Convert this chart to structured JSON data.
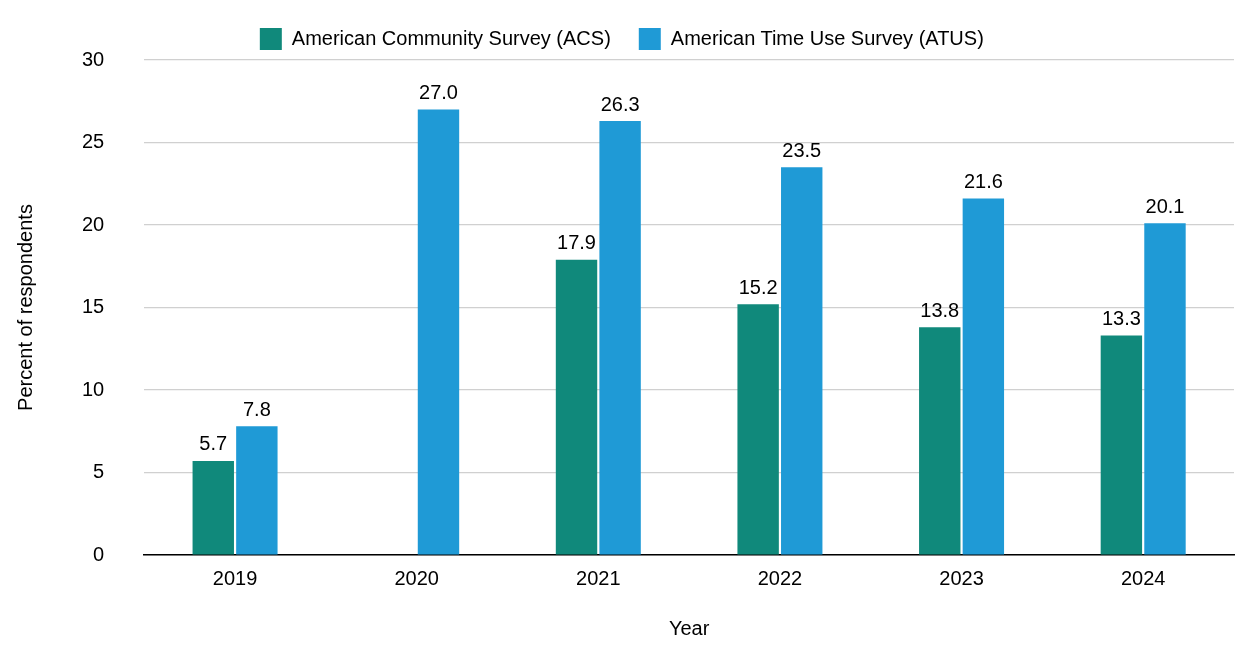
{
  "chart_data": {
    "type": "bar",
    "xlabel": "Year",
    "ylabel": "Percent of respondents",
    "categories": [
      "2019",
      "2020",
      "2021",
      "2022",
      "2023",
      "2024"
    ],
    "series": [
      {
        "name": "American Community Survey (ACS)",
        "color": "#10897b",
        "values": [
          5.7,
          null,
          17.9,
          15.2,
          13.8,
          13.3
        ],
        "value_labels": [
          "5.7",
          null,
          "17.9",
          "15.2",
          "13.8",
          "13.3"
        ]
      },
      {
        "name": "American Time Use Survey (ATUS)",
        "color": "#1f9ad6",
        "values": [
          7.8,
          27.0,
          26.3,
          23.5,
          21.6,
          20.1
        ],
        "value_labels": [
          "7.8",
          "27.0",
          "26.3",
          "23.5",
          "21.6",
          "20.1"
        ]
      }
    ],
    "ylim": [
      0,
      30
    ],
    "yticks": [
      0,
      5,
      10,
      15,
      20,
      25,
      30
    ],
    "grid": "y",
    "legend": "top"
  }
}
